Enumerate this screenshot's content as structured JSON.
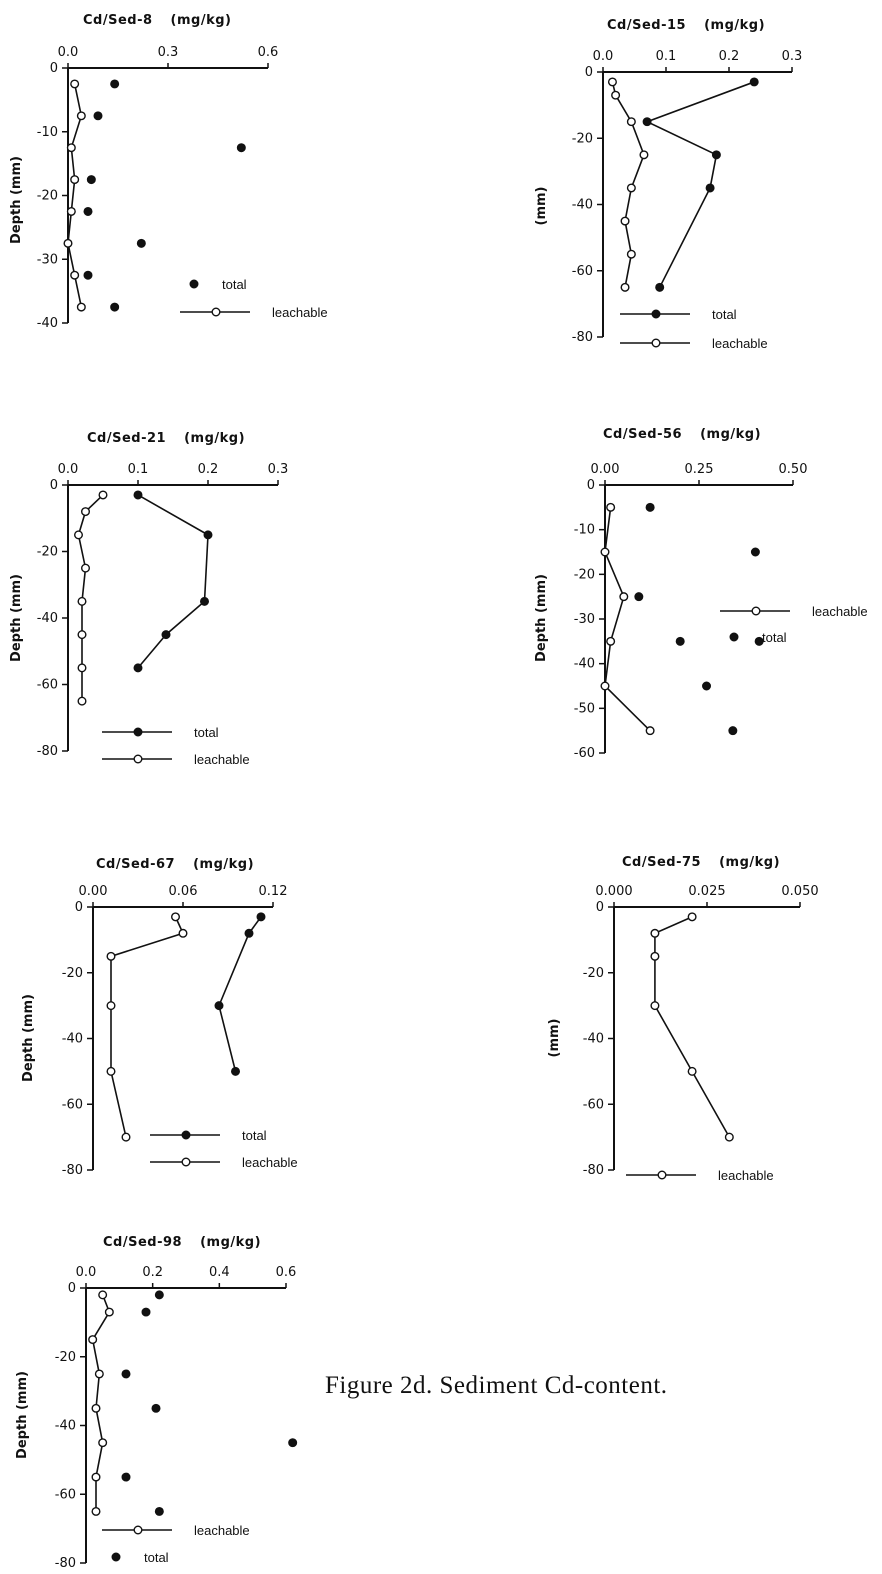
{
  "caption": "Figure 2d. Sediment Cd-content.",
  "chart_data": [
    {
      "type": "scatter",
      "title": "Cd/Sed-8",
      "units": "(mg/kg)",
      "ylabel": "Depth (mm)",
      "xlim": [
        0,
        0.6
      ],
      "xticks": [
        "0.0",
        "0.3",
        "0.6"
      ],
      "ylim": [
        -40,
        0
      ],
      "yticks": [
        "0",
        "-10",
        "-20",
        "-30",
        "-40"
      ],
      "legend_position": "bottom-right",
      "series": [
        {
          "name": "total",
          "connected": false,
          "marker": "filled",
          "x": [
            0.14,
            0.09,
            0.52,
            0.07,
            0.06,
            0.22,
            0.06,
            0.14
          ],
          "y": [
            -2.5,
            -7.5,
            -12.5,
            -17.5,
            -22.5,
            -27.5,
            -32.5,
            -37.5
          ]
        },
        {
          "name": "leachable",
          "connected": true,
          "marker": "open",
          "x": [
            0.02,
            0.04,
            0.01,
            0.02,
            0.01,
            0.0,
            0.02,
            0.04
          ],
          "y": [
            -2.5,
            -7.5,
            -12.5,
            -17.5,
            -22.5,
            -27.5,
            -32.5,
            -37.5
          ]
        }
      ]
    },
    {
      "type": "line",
      "title": "Cd/Sed-15",
      "units": "(mg/kg)",
      "ylabel": "(mm)",
      "xlim": [
        0,
        0.3
      ],
      "xticks": [
        "0.0",
        "0.1",
        "0.2",
        "0.3"
      ],
      "ylim": [
        -80,
        0
      ],
      "yticks": [
        "0",
        "-20",
        "-40",
        "-60",
        "-80"
      ],
      "legend_position": "bottom",
      "series": [
        {
          "name": "total",
          "connected": true,
          "marker": "filled",
          "x": [
            0.24,
            0.07,
            0.18,
            0.17,
            0.09
          ],
          "y": [
            -3,
            -15,
            -25,
            -35,
            -65
          ]
        },
        {
          "name": "leachable",
          "connected": true,
          "marker": "open",
          "x": [
            0.015,
            0.02,
            0.045,
            0.065,
            0.045,
            0.035,
            0.045,
            0.035
          ],
          "y": [
            -3,
            -7,
            -15,
            -25,
            -35,
            -45,
            -55,
            -65
          ]
        }
      ]
    },
    {
      "type": "line",
      "title": "Cd/Sed-21",
      "units": "(mg/kg)",
      "ylabel": "Depth (mm)",
      "xlim": [
        0,
        0.3
      ],
      "xticks": [
        "0.0",
        "0.1",
        "0.2",
        "0.3"
      ],
      "ylim": [
        -80,
        0
      ],
      "yticks": [
        "0",
        "-20",
        "-40",
        "-60",
        "-80"
      ],
      "legend_position": "bottom",
      "series": [
        {
          "name": "total",
          "connected": true,
          "marker": "filled",
          "x": [
            0.1,
            0.2,
            0.195,
            0.14,
            0.1
          ],
          "y": [
            -3,
            -15,
            -35,
            -45,
            -55
          ]
        },
        {
          "name": "leachable",
          "connected": true,
          "marker": "open",
          "x": [
            0.05,
            0.025,
            0.015,
            0.025,
            0.02,
            0.02,
            0.02,
            0.02
          ],
          "y": [
            -3,
            -8,
            -15,
            -25,
            -35,
            -45,
            -55,
            -65
          ]
        }
      ]
    },
    {
      "type": "scatter",
      "title": "Cd/Sed-56",
      "units": "(mg/kg)",
      "ylabel": "Depth (mm)",
      "xlim": [
        0,
        0.5
      ],
      "xticks": [
        "0.00",
        "0.25",
        "0.50"
      ],
      "ylim": [
        -60,
        0
      ],
      "yticks": [
        "0",
        "-10",
        "-20",
        "-30",
        "-40",
        "-50",
        "-60"
      ],
      "legend_position": "right",
      "series": [
        {
          "name": "leachable",
          "connected": true,
          "marker": "open",
          "x": [
            0.015,
            0.0,
            0.05,
            0.015,
            0.0,
            0.12
          ],
          "y": [
            -5,
            -15,
            -25,
            -35,
            -45,
            -55
          ]
        },
        {
          "name": "total",
          "connected": false,
          "marker": "filled",
          "x": [
            0.12,
            0.4,
            0.09,
            0.2,
            0.27,
            0.34,
            0.41
          ],
          "y": [
            -5,
            -15,
            -25,
            -35,
            -45,
            -55,
            -35
          ]
        }
      ]
    },
    {
      "type": "line",
      "title": "Cd/Sed-67",
      "units": "(mg/kg)",
      "ylabel": "Depth (mm)",
      "xlim": [
        0,
        0.12
      ],
      "xticks": [
        "0.00",
        "0.06",
        "0.12"
      ],
      "ylim": [
        -80,
        0
      ],
      "yticks": [
        "0",
        "-20",
        "-40",
        "-60",
        "-80"
      ],
      "legend_position": "bottom-right",
      "series": [
        {
          "name": "total",
          "connected": true,
          "marker": "filled",
          "x": [
            0.112,
            0.104,
            0.084,
            0.095
          ],
          "y": [
            -3,
            -8,
            -30,
            -50
          ]
        },
        {
          "name": "leachable",
          "connected": true,
          "marker": "open",
          "x": [
            0.055,
            0.06,
            0.012,
            0.012,
            0.012,
            0.022
          ],
          "y": [
            -3,
            -8,
            -15,
            -30,
            -50,
            -70
          ]
        }
      ]
    },
    {
      "type": "line",
      "title": "Cd/Sed-75",
      "units": "(mg/kg)",
      "ylabel": "(mm)",
      "xlim": [
        0,
        0.05
      ],
      "xticks": [
        "0.000",
        "0.025",
        "0.050"
      ],
      "ylim": [
        -80,
        0
      ],
      "yticks": [
        "0",
        "-20",
        "-40",
        "-60",
        "-80"
      ],
      "legend_position": "bottom",
      "series": [
        {
          "name": "leachable",
          "connected": true,
          "marker": "open",
          "x": [
            0.021,
            0.011,
            0.011,
            0.011,
            0.021,
            0.031
          ],
          "y": [
            -3,
            -8,
            -15,
            -30,
            -50,
            -70
          ]
        }
      ]
    },
    {
      "type": "scatter",
      "title": "Cd/Sed-98",
      "units": "(mg/kg)",
      "ylabel": "Depth (mm)",
      "xlim": [
        0,
        0.6
      ],
      "xticks": [
        "0.0",
        "0.2",
        "0.4",
        "0.6"
      ],
      "ylim": [
        -80,
        0
      ],
      "yticks": [
        "0",
        "-20",
        "-40",
        "-60",
        "-80"
      ],
      "legend_position": "bottom",
      "series": [
        {
          "name": "leachable",
          "connected": true,
          "marker": "open",
          "x": [
            0.05,
            0.07,
            0.02,
            0.04,
            0.03,
            0.05,
            0.03,
            0.03
          ],
          "y": [
            -2,
            -7,
            -15,
            -25,
            -35,
            -45,
            -55,
            -65
          ]
        },
        {
          "name": "total",
          "connected": false,
          "marker": "filled",
          "x": [
            0.22,
            0.18,
            0.12,
            0.21,
            0.62,
            0.12,
            0.22
          ],
          "y": [
            -2,
            -7,
            -25,
            -35,
            -45,
            -55,
            -65
          ]
        }
      ]
    }
  ]
}
